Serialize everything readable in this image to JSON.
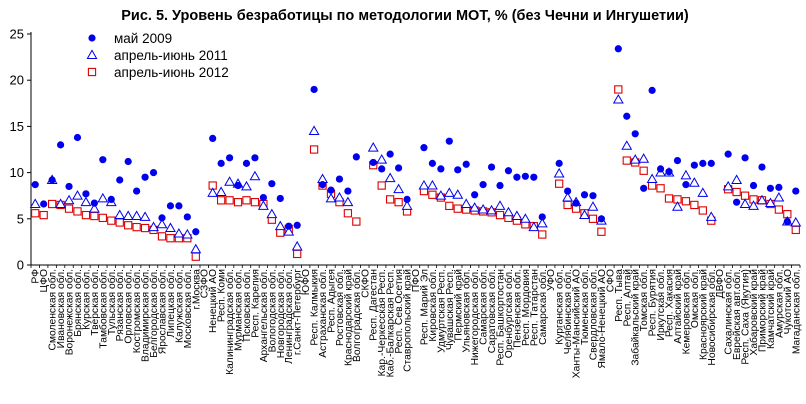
{
  "chart_data": {
    "type": "scatter",
    "title": "Рис. 5. Уровень безработицы по методологии МОТ, % (без Чечни и Ингушетии)",
    "xlabel": "",
    "ylabel": "",
    "ylim": [
      0,
      25
    ],
    "yticks": [
      0,
      5,
      10,
      15,
      20,
      25
    ],
    "grid": false,
    "legend_position": "top-left",
    "categories": [
      "РФ",
      "ЦФО",
      "Смоленская обл.",
      "Ивановская обл.",
      "Воронежская обл.",
      "Брянская обл.",
      "Курская обл.",
      "Тверская обл.",
      "Тамбовская обл.",
      "Тульская обл.",
      "Рязанская обл.",
      "Орловская обл.",
      "Костромская обл.",
      "Владимирская обл.",
      "Белгородская обл.",
      "Ярославская обл.",
      "Липецкая обл.",
      "Калужская обл.",
      "Московская обл.",
      "г.Москва",
      "СЗФО",
      "Ненецкий АО",
      "Респ. Коми",
      "Калининградская обл.",
      "Мурманская обл.",
      "Псковская обл.",
      "Респ. Карелия",
      "Архангельская обл.",
      "Вологодская обл.",
      "Новгородская обл.",
      "Ленинградская обл.",
      "г.Санкт-Петербург",
      "ЮФО",
      "Респ. Калмыкия",
      "Астраханская обл.",
      "Респ. Адыгея",
      "Ростовская обл.",
      "Краснодарский край",
      "Волгоградская обл.",
      "СКФО",
      "Респ. Дагестан",
      "Кар.-Черкесская Респ.",
      "Каб.-Балкарская Респ.",
      "Респ. Сев.Осетия",
      "Ставропольский край",
      "ПФО",
      "Респ. Марий Эл",
      "Кировская обл.",
      "Удмуртская Респ.",
      "Чувашская Респ.",
      "Пермский край",
      "Ульяновская обл.",
      "Нижегородская обл.",
      "Самарская обл.",
      "Саратовская обл.",
      "Респ. Башкортостан",
      "Оренбургская обл.",
      "Пензенская обл.",
      "Респ. Мордовия",
      "Респ. Татарстан",
      "Самарская обл.",
      "УФО",
      "Курганская обл.",
      "Челябинская обл.",
      "Ханты-Мансийский АО",
      "Тюменская обл.",
      "Свердловская обл.",
      "Ямало-Ненецкий АО",
      "СФО",
      "Респ. Тыва",
      "Респ. Алтай",
      "Забайкальский край",
      "Томская обл.",
      "Респ. Бурятия",
      "Иркутская обл.",
      "Респ. Хакасия",
      "Алтайский край",
      "Кемеровская обл.",
      "Омская обл.",
      "Красноярский край",
      "Новосибирская обл.",
      "ДВФО",
      "Сахалинская обл.",
      "Еврейская авт.обл.",
      "Респ. Саха (Якутия)",
      "Хабаровский край",
      "Приморский край",
      "Камчатский край",
      "Амурская обл.",
      "Чукотский АО",
      "Магаданская обл."
    ],
    "series": [
      {
        "name": "май 2009",
        "marker": "circle",
        "color": "#0000ee",
        "values": [
          8.7,
          6.6,
          9.2,
          13.0,
          8.5,
          13.8,
          7.7,
          6.7,
          11.4,
          7.1,
          9.2,
          11.2,
          8.0,
          9.5,
          10.0,
          5.1,
          6.4,
          6.4,
          5.2,
          3.6,
          null,
          13.7,
          11.0,
          11.6,
          8.6,
          11.0,
          11.6,
          7.3,
          8.8,
          7.2,
          4.2,
          4.3,
          null,
          19.0,
          8.7,
          8.1,
          9.3,
          8.0,
          11.7,
          null,
          11.1,
          10.4,
          12.0,
          10.5,
          7.1,
          null,
          12.7,
          11.0,
          10.4,
          13.4,
          10.3,
          10.9,
          7.6,
          8.7,
          10.6,
          8.6,
          10.2,
          9.5,
          9.6,
          9.5,
          5.2,
          null,
          11.0,
          8.0,
          6.7,
          7.6,
          7.5,
          5.0,
          null,
          23.4,
          16.1,
          14.2,
          8.3,
          18.9,
          10.4,
          10.1,
          11.3,
          8.7,
          10.8,
          11.0,
          11.0,
          null,
          12.0,
          6.8,
          11.6,
          8.6,
          10.6,
          8.3,
          8.4,
          4.7,
          8.0
        ]
      },
      {
        "name": "апрель-июнь 2011",
        "marker": "triangle",
        "color": "#0000ee",
        "values": [
          6.6,
          null,
          9.2,
          6.6,
          7.0,
          7.5,
          6.8,
          6.1,
          7.2,
          6.8,
          5.4,
          5.3,
          5.3,
          5.2,
          4.1,
          4.4,
          4.0,
          3.4,
          3.3,
          1.7,
          null,
          7.8,
          7.9,
          9.0,
          8.8,
          8.5,
          9.6,
          6.4,
          5.5,
          4.2,
          3.6,
          2.0,
          null,
          14.5,
          9.3,
          7.2,
          7.3,
          6.8,
          null,
          null,
          12.7,
          11.4,
          9.4,
          8.2,
          6.4,
          null,
          8.6,
          8.6,
          7.5,
          7.8,
          7.6,
          6.6,
          6.2,
          6.0,
          5.9,
          6.4,
          5.7,
          5.3,
          5.0,
          4.1,
          4.5,
          null,
          9.9,
          7.3,
          6.8,
          5.4,
          6.3,
          4.8,
          null,
          17.9,
          12.9,
          11.4,
          11.5,
          9.3,
          10.0,
          10.0,
          6.3,
          9.7,
          8.9,
          7.8,
          5.2,
          null,
          8.5,
          9.2,
          6.6,
          6.4,
          7.0,
          6.7,
          7.3,
          4.7,
          4.6
        ]
      },
      {
        "name": "апрель-июнь 2012",
        "marker": "square",
        "color": "#dd0000",
        "values": [
          5.6,
          5.4,
          6.6,
          6.5,
          6.1,
          5.8,
          5.4,
          5.3,
          5.1,
          4.8,
          4.6,
          4.3,
          4.1,
          4.0,
          3.8,
          3.1,
          2.9,
          2.9,
          2.9,
          0.9,
          null,
          8.6,
          7.0,
          7.0,
          6.8,
          7.0,
          6.8,
          6.6,
          4.9,
          3.5,
          3.9,
          1.2,
          null,
          12.5,
          8.6,
          7.7,
          6.8,
          5.6,
          4.7,
          null,
          10.8,
          8.6,
          7.1,
          6.8,
          5.8,
          null,
          8.0,
          7.6,
          7.3,
          6.4,
          6.1,
          6.0,
          5.9,
          5.8,
          5.7,
          5.4,
          5.1,
          4.8,
          4.4,
          4.2,
          3.3,
          null,
          8.8,
          6.5,
          6.1,
          5.6,
          5.0,
          3.6,
          null,
          19.0,
          11.3,
          11.1,
          10.2,
          8.6,
          8.3,
          7.2,
          7.1,
          6.9,
          6.5,
          5.9,
          4.8,
          null,
          8.2,
          7.9,
          7.5,
          7.1,
          7.0,
          6.6,
          6.0,
          5.5,
          3.8
        ]
      }
    ]
  }
}
